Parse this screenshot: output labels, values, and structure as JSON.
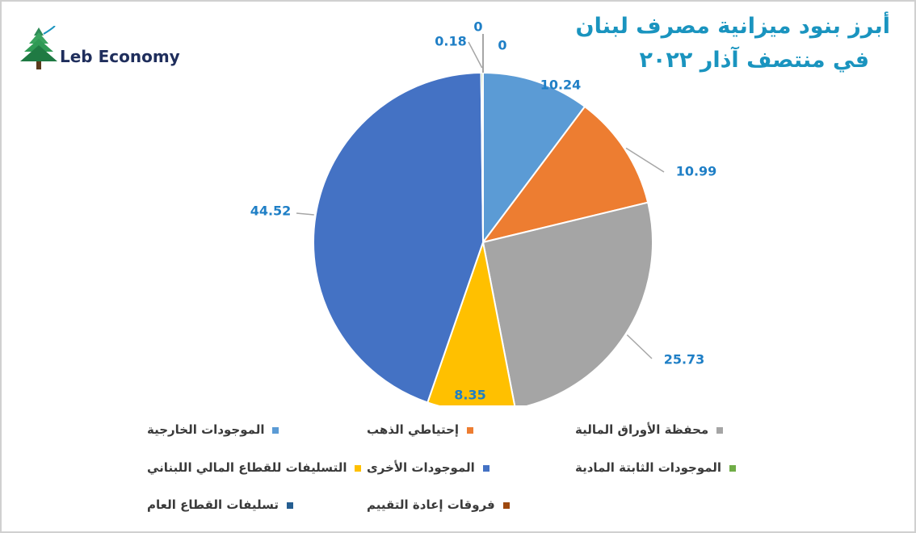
{
  "logo": {
    "text": "Leb Economy"
  },
  "chart_data": {
    "type": "pie",
    "title": "أبرز بنود ميزانية مصرف لبنان",
    "subtitle": "في منتصف آذار ٢٠٢٢",
    "categories": [
      "الموجودات الخارجية",
      "إحتياطي الذهب",
      "محفظة الأوراق المالية",
      "التسليفات للقطاع المالي اللبناني",
      "الموجودات الأخرى",
      "الموجودات الثابتة المادية",
      "تسليفات القطاع العام",
      "فروقات إعادة التقييم"
    ],
    "values": [
      10.24,
      10.99,
      25.73,
      8.35,
      44.52,
      0.18,
      0,
      0
    ],
    "value_labels": [
      "10.24",
      "10.99",
      "25.73",
      "8.35",
      "44.52",
      "0.18",
      "0",
      "0"
    ],
    "colors": [
      "#5b9bd5",
      "#ed7d31",
      "#a5a5a5",
      "#ffc000",
      "#4472c4",
      "#70ad47",
      "#255e91",
      "#9e480e"
    ],
    "label_color": "#1f7fc6",
    "legend_position": "bottom"
  }
}
